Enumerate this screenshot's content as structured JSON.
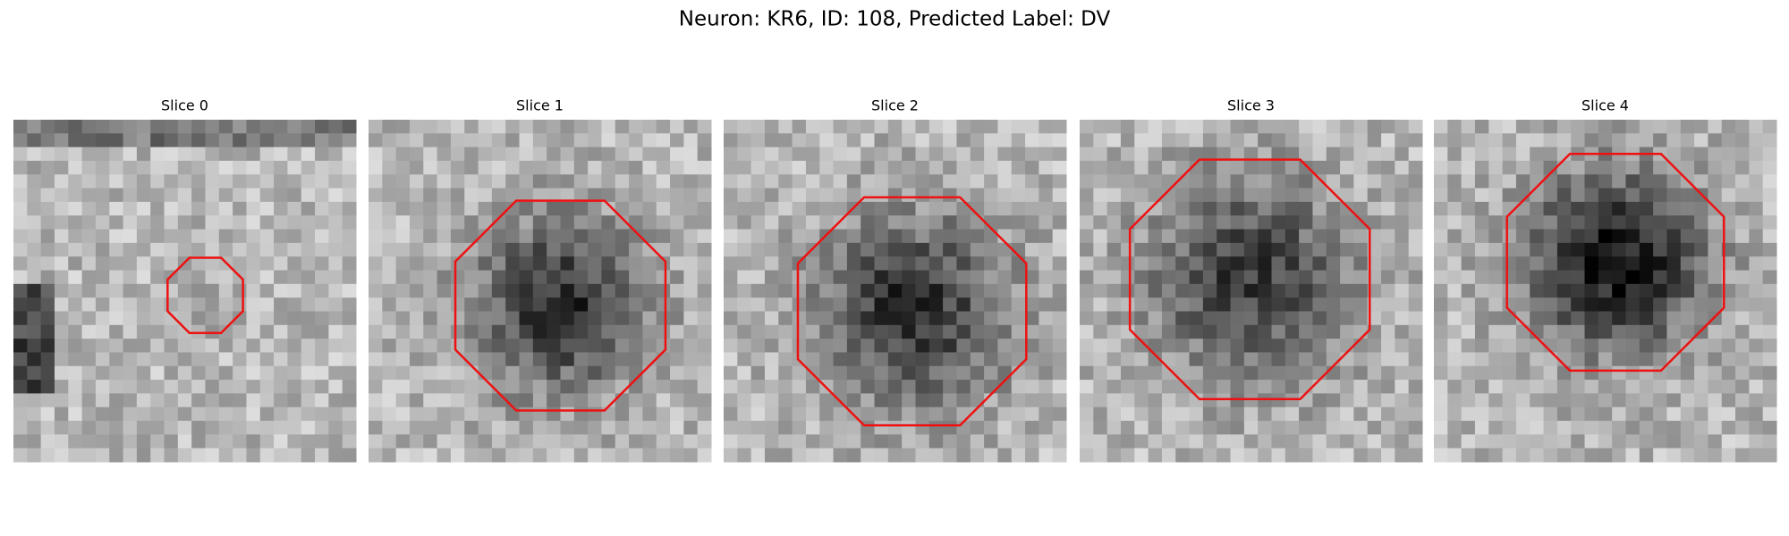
{
  "title": "Neuron: KR6, ID: 108, Predicted Label: DV",
  "panels": [
    {
      "title": "Slice 0"
    },
    {
      "title": "Slice 1"
    },
    {
      "title": "Slice 2"
    },
    {
      "title": "Slice 3"
    },
    {
      "title": "Slice 4"
    }
  ]
}
